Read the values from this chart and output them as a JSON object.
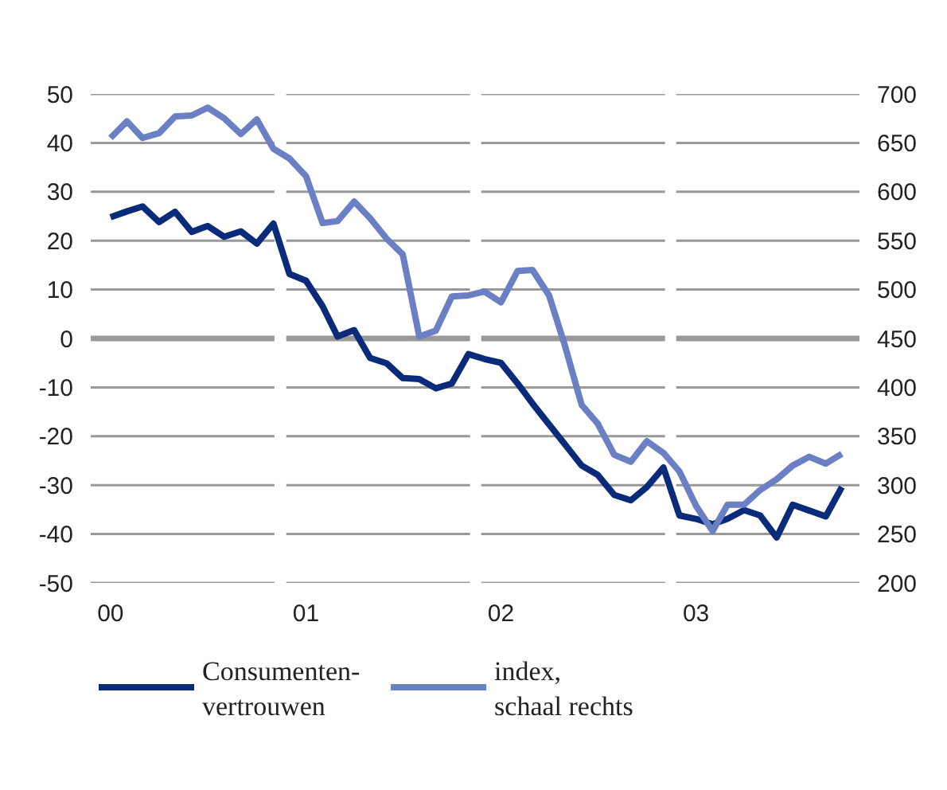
{
  "chart_data": {
    "type": "line",
    "x": [
      "2000-01",
      "2000-02",
      "2000-03",
      "2000-04",
      "2000-05",
      "2000-06",
      "2000-07",
      "2000-08",
      "2000-09",
      "2000-10",
      "2000-11",
      "2000-12",
      "2001-01",
      "2001-02",
      "2001-03",
      "2001-04",
      "2001-05",
      "2001-06",
      "2001-07",
      "2001-08",
      "2001-09",
      "2001-10",
      "2001-11",
      "2001-12",
      "2002-01",
      "2002-02",
      "2002-03",
      "2002-04",
      "2002-05",
      "2002-06",
      "2002-07",
      "2002-08",
      "2002-09",
      "2002-10",
      "2002-11",
      "2002-12",
      "2003-01",
      "2003-02",
      "2003-03",
      "2003-04",
      "2003-05",
      "2003-06",
      "2003-07",
      "2003-08",
      "2003-09",
      "2003-10"
    ],
    "series": [
      {
        "name": "Consumenten-\nvertrouwen",
        "color": "#0a2a7a",
        "values": [
          24.8,
          26,
          27,
          23.8,
          25.9,
          21.8,
          23,
          20.8,
          21.9,
          19.4,
          23.5,
          13.2,
          11.8,
          6.6,
          0.4,
          1.7,
          -4,
          -5.1,
          -8.1,
          -8.3,
          -10.2,
          -9.2,
          -3.2,
          -4.2,
          -5,
          -9.2,
          -13.3,
          -17.6,
          -21.7,
          -26,
          -27.9,
          -32,
          -33.1,
          -30.4,
          -26.4,
          -36.2,
          -36.9,
          -38,
          -36.9,
          -35.1,
          -36.2,
          -40.7,
          -34,
          -35.2,
          -36.4,
          -30.4
        ]
      },
      {
        "name": "index,\nschaal rechts",
        "color": "#6b7fc4",
        "axis": "y2",
        "values": [
          655,
          672,
          655,
          660,
          677,
          678,
          686,
          675,
          659,
          674,
          644,
          634,
          616,
          568,
          570,
          590,
          573,
          552,
          536,
          452,
          458,
          493,
          494,
          498,
          487,
          519,
          520,
          494,
          442,
          382,
          363,
          331,
          324,
          345,
          333,
          314,
          279,
          253,
          280,
          280,
          295,
          306,
          320,
          329,
          322,
          332
        ]
      }
    ],
    "xlim": [
      "1999-11-25",
      "2003-11-03"
    ],
    "xticks": [
      {
        "value": "2000-01-01",
        "label": "00"
      },
      {
        "value": "2001-01-01",
        "label": "01"
      },
      {
        "value": "2002-01-01",
        "label": "02"
      },
      {
        "value": "2003-01-01",
        "label": "03"
      }
    ],
    "ylim": [
      -50,
      50
    ],
    "yticks": [
      -50,
      -40,
      -30,
      -20,
      -10,
      0,
      10,
      20,
      30,
      40,
      50
    ],
    "y2lim": [
      200,
      700
    ],
    "y2ticks": [
      200,
      250,
      300,
      350,
      400,
      450,
      500,
      550,
      600,
      650,
      700
    ],
    "grid": "y",
    "legend": "bottom",
    "line_style": "solid",
    "marker": "none"
  }
}
